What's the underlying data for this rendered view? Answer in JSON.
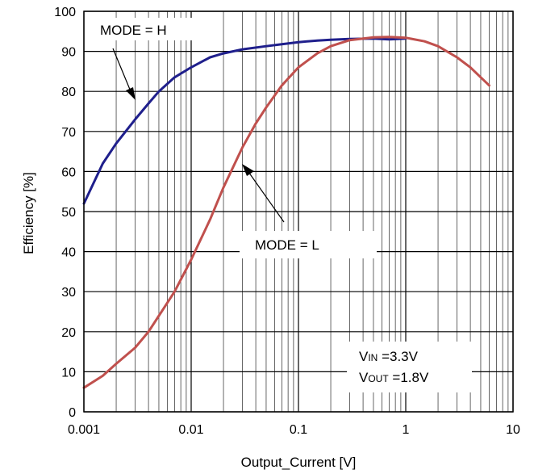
{
  "chart_data": {
    "type": "line",
    "xlabel": "Output_Current [V]",
    "ylabel": "Efficiency [%]",
    "xscale": "log",
    "xlim": [
      0.001,
      10
    ],
    "ylim": [
      0,
      100
    ],
    "x_ticks": [
      "0.001",
      "0.01",
      "0.1",
      "1",
      "10"
    ],
    "y_ticks": [
      "0",
      "10",
      "20",
      "30",
      "40",
      "50",
      "60",
      "70",
      "80",
      "90",
      "100"
    ],
    "grid": "on",
    "series": [
      {
        "name": "MODE = H",
        "color": "#1f1f8c",
        "x": [
          0.001,
          0.0015,
          0.002,
          0.003,
          0.004,
          0.005,
          0.007,
          0.01,
          0.015,
          0.02,
          0.03,
          0.05,
          0.07,
          0.1,
          0.15,
          0.2,
          0.3,
          0.5,
          0.7,
          1.0
        ],
        "y": [
          52,
          62,
          67,
          73,
          77,
          80,
          83.5,
          86,
          88.5,
          89.5,
          90.5,
          91.3,
          91.8,
          92.3,
          92.7,
          92.9,
          93.1,
          93.2,
          93.0,
          93.2
        ]
      },
      {
        "name": "MODE = L",
        "color": "#c0504d",
        "x": [
          0.001,
          0.0015,
          0.002,
          0.003,
          0.004,
          0.005,
          0.007,
          0.01,
          0.015,
          0.02,
          0.03,
          0.04,
          0.05,
          0.07,
          0.1,
          0.15,
          0.2,
          0.3,
          0.5,
          0.7,
          1.0,
          1.5,
          2.0,
          3.0,
          4.0,
          5.0,
          6.0
        ],
        "y": [
          6,
          9,
          12,
          16,
          20,
          24,
          30,
          38,
          48,
          56,
          66,
          72,
          76,
          81.5,
          86,
          89.5,
          91.3,
          92.8,
          93.5,
          93.6,
          93.4,
          92.5,
          91.3,
          88.5,
          86,
          83.5,
          81.5
        ]
      }
    ],
    "annotations": {
      "mode_h": "MODE = H",
      "mode_l": "MODE = L",
      "vin_label": "V",
      "vin_sub": "IN",
      "vin_value": " =3.3V",
      "vout_label": "V",
      "vout_sub": "OUT",
      "vout_value": " =1.8V"
    }
  }
}
